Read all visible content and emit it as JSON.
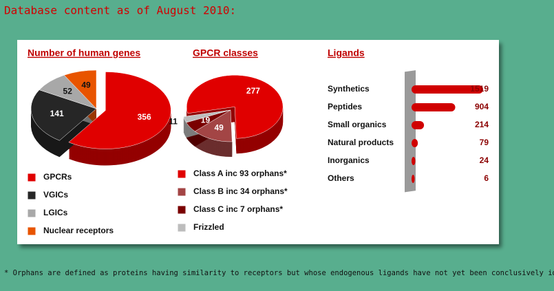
{
  "header": {
    "title": "Database content as of August 2010:"
  },
  "footnote": "* Orphans are defined as proteins having similarity to receptors but whose endogenous ligands have not yet been conclusively identified.",
  "chart_data": [
    {
      "type": "pie",
      "title": "Number of  human genes",
      "categories": [
        "GPCRs",
        "VGICs",
        "LGICs",
        "Nuclear receptors"
      ],
      "values": [
        356,
        141,
        52,
        49
      ],
      "colors": [
        "#e00000",
        "#262626",
        "#a8a8a8",
        "#e85400"
      ]
    },
    {
      "type": "pie",
      "title": "GPCR classes",
      "categories": [
        "Class A inc 93 orphans*",
        "Class B inc 34 orphans*",
        "Class C inc  7 orphans*",
        "Frizzled"
      ],
      "values": [
        277,
        49,
        19,
        11
      ],
      "colors": [
        "#e00000",
        "#a34545",
        "#7a0000",
        "#bdbdbd"
      ]
    },
    {
      "type": "hbar",
      "title": "Ligands",
      "categories": [
        "Synthetics",
        "Peptides",
        "Small organics",
        "Natural products",
        "Inorganics",
        "Others"
      ],
      "values": [
        1519,
        904,
        214,
        79,
        24,
        6
      ],
      "color": "#d00000"
    }
  ]
}
